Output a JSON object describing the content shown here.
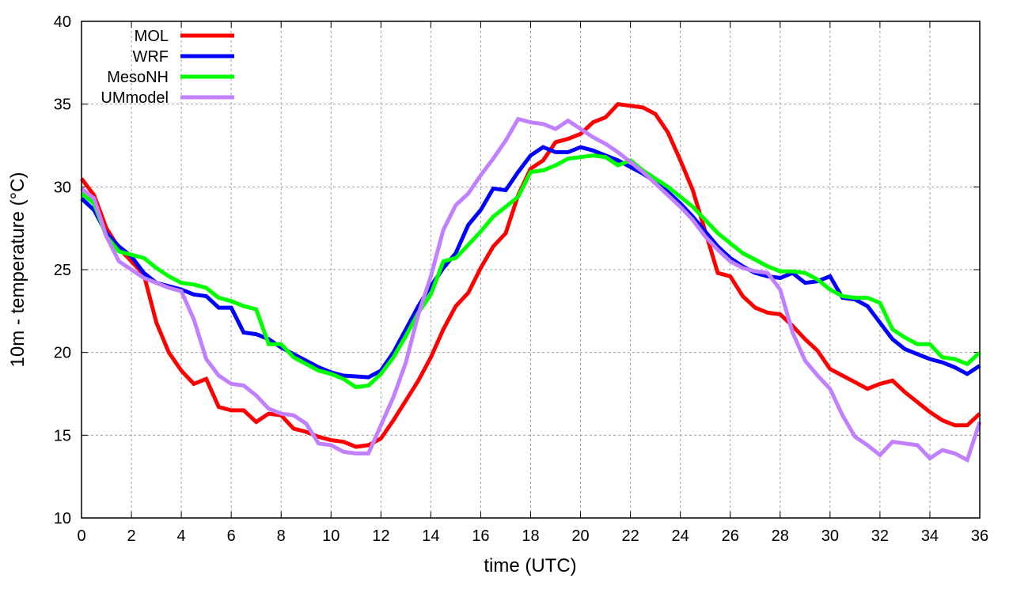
{
  "chart_data": {
    "type": "line",
    "title": "",
    "xlabel": "time (UTC)",
    "ylabel": "10m - temperature (°C)",
    "xlim": [
      0,
      36
    ],
    "ylim": [
      10,
      40
    ],
    "xticks": [
      0,
      2,
      4,
      6,
      8,
      10,
      12,
      14,
      16,
      18,
      20,
      22,
      24,
      26,
      28,
      30,
      32,
      34,
      36
    ],
    "yticks": [
      10,
      15,
      20,
      25,
      30,
      35,
      40
    ],
    "grid": true,
    "legend_position": "top-left",
    "x_step": 0.5,
    "series": [
      {
        "name": "MOL",
        "color": "#ff0000",
        "values": [
          30.5,
          29.5,
          27.5,
          26.3,
          25.5,
          24.7,
          21.8,
          20.0,
          18.9,
          18.1,
          18.4,
          16.7,
          16.5,
          16.5,
          15.8,
          16.3,
          16.2,
          15.4,
          15.2,
          14.9,
          14.7,
          14.6,
          14.3,
          14.4,
          14.8,
          15.9,
          17.1,
          18.3,
          19.7,
          21.4,
          22.8,
          23.6,
          25.1,
          26.4,
          27.2,
          29.5,
          31.1,
          31.6,
          32.7,
          32.9,
          33.2,
          33.9,
          34.2,
          35.0,
          34.9,
          34.8,
          34.4,
          33.3,
          31.6,
          29.8,
          27.3,
          24.8,
          24.6,
          23.4,
          22.7,
          22.4,
          22.3,
          21.6,
          20.8,
          20.1,
          19.0,
          18.6,
          18.2,
          17.8,
          18.1,
          18.3,
          17.6,
          17.0,
          16.4,
          15.9,
          15.6,
          15.6,
          16.3
        ]
      },
      {
        "name": "WRF",
        "color": "#0000ff",
        "values": [
          29.3,
          28.6,
          27.2,
          26.4,
          25.8,
          24.8,
          24.2,
          24.0,
          23.8,
          23.5,
          23.4,
          22.7,
          22.7,
          21.2,
          21.1,
          20.8,
          20.3,
          19.9,
          19.5,
          19.1,
          18.8,
          18.6,
          18.55,
          18.5,
          18.9,
          20.0,
          21.4,
          22.8,
          24.0,
          25.1,
          26.0,
          27.7,
          28.6,
          29.9,
          29.8,
          30.9,
          31.9,
          32.4,
          32.1,
          32.1,
          32.4,
          32.2,
          31.9,
          31.6,
          31.2,
          30.8,
          30.3,
          29.7,
          29.0,
          28.2,
          27.3,
          26.4,
          25.7,
          25.2,
          24.8,
          24.6,
          24.5,
          24.8,
          24.2,
          24.3,
          24.6,
          23.3,
          23.2,
          22.8,
          21.8,
          20.8,
          20.2,
          19.9,
          19.6,
          19.4,
          19.1,
          18.7,
          19.2
        ]
      },
      {
        "name": "MesoNH",
        "color": "#00ff00",
        "values": [
          29.6,
          29.0,
          27.0,
          26.1,
          25.9,
          25.7,
          25.1,
          24.6,
          24.2,
          24.1,
          23.9,
          23.3,
          23.1,
          22.8,
          22.6,
          20.5,
          20.5,
          19.7,
          19.3,
          18.9,
          18.7,
          18.4,
          17.9,
          18.0,
          18.7,
          19.7,
          21.0,
          22.4,
          23.5,
          25.5,
          25.7,
          26.5,
          27.3,
          28.2,
          28.8,
          29.4,
          30.9,
          31.0,
          31.3,
          31.7,
          31.8,
          31.9,
          31.8,
          31.3,
          31.6,
          31.0,
          30.5,
          30.0,
          29.4,
          28.8,
          28.0,
          27.2,
          26.6,
          26.0,
          25.6,
          25.2,
          24.9,
          24.9,
          24.8,
          24.4,
          23.8,
          23.4,
          23.3,
          23.3,
          23.0,
          21.4,
          20.9,
          20.5,
          20.5,
          19.7,
          19.6,
          19.3,
          20.0
        ]
      },
      {
        "name": "UMmodel",
        "color": "#c080ff",
        "values": [
          29.9,
          29.3,
          27.0,
          25.5,
          25.0,
          24.5,
          24.2,
          23.9,
          23.7,
          22.0,
          19.6,
          18.6,
          18.1,
          18.0,
          17.4,
          16.6,
          16.3,
          16.2,
          15.7,
          14.5,
          14.4,
          14.0,
          13.9,
          13.9,
          15.6,
          17.3,
          19.4,
          22.3,
          24.6,
          27.4,
          28.9,
          29.6,
          30.7,
          31.7,
          32.8,
          34.1,
          33.9,
          33.8,
          33.5,
          34.0,
          33.5,
          33.0,
          32.6,
          32.1,
          31.5,
          30.9,
          30.2,
          29.5,
          28.8,
          28.0,
          27.0,
          26.2,
          25.5,
          25.1,
          24.9,
          24.8,
          23.8,
          21.2,
          19.5,
          18.6,
          17.8,
          16.2,
          14.9,
          14.4,
          13.8,
          14.6,
          14.5,
          14.4,
          13.6,
          14.1,
          13.9,
          13.5,
          15.8
        ]
      }
    ]
  }
}
